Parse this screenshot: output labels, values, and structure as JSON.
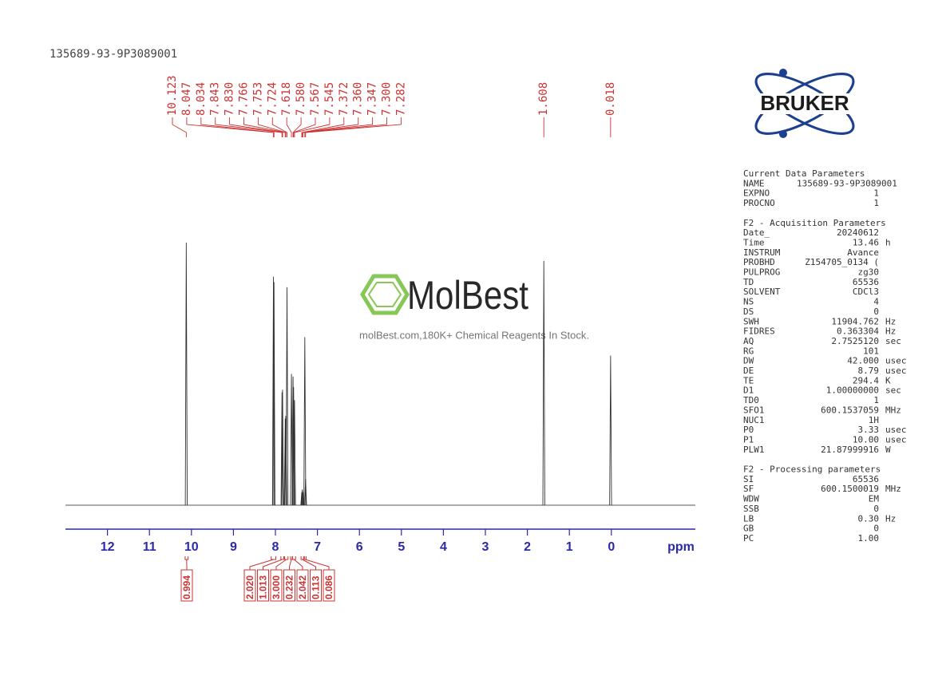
{
  "title": "135689-93-9P3089001",
  "logo": "BRUKER",
  "watermark": {
    "brand": "MolBest",
    "tagline": "molBest.com,180K+ Chemical Reagents In Stock."
  },
  "chart_data": {
    "type": "nmr",
    "x_label": "ppm",
    "xlim": [
      13,
      -2
    ],
    "xticks": [
      12,
      11,
      10,
      9,
      8,
      7,
      6,
      5,
      4,
      3,
      2,
      1,
      0
    ],
    "ylim": [
      0,
      1
    ],
    "peaks": {
      "x": [
        10.123,
        8.047,
        8.034,
        7.843,
        7.83,
        7.766,
        7.753,
        7.724,
        7.618,
        7.58,
        7.567,
        7.545,
        7.372,
        7.36,
        7.347,
        7.3,
        7.282,
        1.608,
        0.018
      ],
      "peak_labels": [
        "10.123",
        "8.047",
        "8.034",
        "7.843",
        "7.830",
        "7.766",
        "7.753",
        "7.724",
        "7.618",
        "7.580",
        "7.567",
        "7.545",
        "7.372",
        "7.360",
        "7.347",
        "7.300",
        "7.282",
        "1.608",
        "0.018"
      ],
      "values": [
        1.0,
        0.87,
        0.85,
        0.43,
        0.44,
        0.33,
        0.34,
        0.83,
        0.5,
        0.49,
        0.45,
        0.4,
        0.05,
        0.06,
        0.05,
        0.64,
        0.1,
        0.93,
        0.57
      ]
    },
    "integrals": {
      "regions": [
        [
          10.15,
          10.08
        ],
        [
          8.1,
          7.99
        ],
        [
          7.87,
          7.8
        ],
        [
          7.78,
          7.7
        ],
        [
          7.64,
          7.6
        ],
        [
          7.59,
          7.52
        ],
        [
          7.39,
          7.33
        ],
        [
          7.31,
          7.27
        ]
      ],
      "values": [
        0.994,
        2.02,
        1.013,
        3.0,
        0.232,
        2.042,
        0.113,
        0.086
      ],
      "value_labels": [
        "0.994",
        "2.020",
        "1.013",
        "3.000",
        "0.232",
        "2.042",
        "0.113",
        "0.086"
      ]
    }
  },
  "parameters": {
    "sections": [
      {
        "title": "Current Data Parameters",
        "rows": [
          [
            "NAME",
            "135689-93-9P3089001"
          ],
          [
            "EXPNO",
            "1"
          ],
          [
            "PROCNO",
            "1"
          ]
        ]
      },
      {
        "title": "F2 - Acquisition Parameters",
        "rows": [
          [
            "Date_",
            "20240612"
          ],
          [
            "Time",
            "13.46",
            "h"
          ],
          [
            "INSTRUM",
            "Avance"
          ],
          [
            "PROBHD",
            "Z154705_0134 ("
          ],
          [
            "PULPROG",
            "zg30"
          ],
          [
            "TD",
            "65536"
          ],
          [
            "SOLVENT",
            "CDCl3"
          ],
          [
            "NS",
            "4"
          ],
          [
            "DS",
            "0"
          ],
          [
            "SWH",
            "11904.762",
            "Hz"
          ],
          [
            "FIDRES",
            "0.363304",
            "Hz"
          ],
          [
            "AQ",
            "2.7525120",
            "sec"
          ],
          [
            "RG",
            "101"
          ],
          [
            "DW",
            "42.000",
            "usec"
          ],
          [
            "DE",
            "8.79",
            "usec"
          ],
          [
            "TE",
            "294.4",
            "K"
          ],
          [
            "D1",
            "1.00000000",
            "sec"
          ],
          [
            "TD0",
            "1"
          ],
          [
            "SFO1",
            "600.1537059",
            "MHz"
          ],
          [
            "NUC1",
            "1H"
          ],
          [
            "P0",
            "3.33",
            "usec"
          ],
          [
            "P1",
            "10.00",
            "usec"
          ],
          [
            "PLW1",
            "21.87999916",
            "W"
          ]
        ]
      },
      {
        "title": "F2 - Processing parameters",
        "rows": [
          [
            "SI",
            "65536"
          ],
          [
            "SF",
            "600.1500019",
            "MHz"
          ],
          [
            "WDW",
            "EM"
          ],
          [
            "SSB",
            "0"
          ],
          [
            "LB",
            "0.30",
            "Hz"
          ],
          [
            "GB",
            "0"
          ],
          [
            "PC",
            "1.00"
          ]
        ]
      }
    ]
  }
}
